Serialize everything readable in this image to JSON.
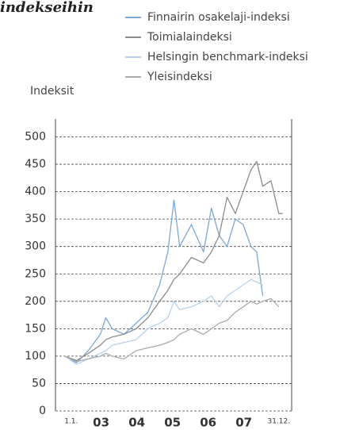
{
  "chart_data": {
    "type": "line",
    "title": "indekseihin",
    "ylabel": "Indeksit",
    "x": [
      2002.48,
      2002.81,
      2003.14,
      2003.48,
      2003.63,
      2003.81,
      2004.14,
      2004.48,
      2004.81,
      2005.14,
      2005.37,
      2005.54,
      2005.7,
      2006.03,
      2006.37,
      2006.59,
      2006.81,
      2007.03,
      2007.26,
      2007.48,
      2007.7,
      2007.86,
      2008.03,
      2008.26,
      2008.48,
      2008.59
    ],
    "series": [
      {
        "name": "Finnairin osakelaji-indeksi",
        "color": "#7aa8d8",
        "values": [
          100,
          88,
          110,
          140,
          170,
          150,
          140,
          160,
          180,
          230,
          290,
          385,
          300,
          340,
          290,
          370,
          320,
          300,
          350,
          340,
          300,
          290,
          210,
          null,
          null,
          null
        ]
      },
      {
        "name": "Toimialaindeksi",
        "color": "#8c8c8c",
        "values": [
          100,
          92,
          105,
          120,
          130,
          135,
          140,
          150,
          170,
          200,
          220,
          240,
          250,
          280,
          270,
          290,
          320,
          390,
          360,
          400,
          440,
          455,
          410,
          420,
          360,
          360
        ]
      },
      {
        "name": "Helsingin benchmark-indeksi",
        "color": "#b9d1ee",
        "values": [
          100,
          85,
          95,
          105,
          110,
          120,
          125,
          130,
          150,
          160,
          170,
          200,
          185,
          190,
          200,
          210,
          190,
          210,
          220,
          230,
          240,
          235,
          230,
          null,
          null,
          null
        ]
      },
      {
        "name": "Yleisindeksi",
        "color": "#ababab",
        "values": [
          100,
          90,
          95,
          100,
          105,
          100,
          95,
          110,
          115,
          120,
          125,
          130,
          140,
          150,
          140,
          150,
          160,
          165,
          180,
          190,
          200,
          195,
          200,
          205,
          190,
          null
        ]
      }
    ],
    "xlim": [
      2002.22,
      2008.84
    ],
    "xticks": [
      {
        "value": 2002.66,
        "label": "1.1."
      },
      {
        "value": 2003.5,
        "label": "03"
      },
      {
        "value": 2004.5,
        "label": "04"
      },
      {
        "value": 2005.5,
        "label": "05"
      },
      {
        "value": 2006.5,
        "label": "06"
      },
      {
        "value": 2007.5,
        "label": "07"
      },
      {
        "value": 2008.48,
        "label": "31.12."
      }
    ],
    "ylim": [
      0,
      500
    ],
    "yticks": [
      0,
      50,
      100,
      150,
      200,
      250,
      300,
      350,
      400,
      450,
      500
    ],
    "grid": true
  }
}
